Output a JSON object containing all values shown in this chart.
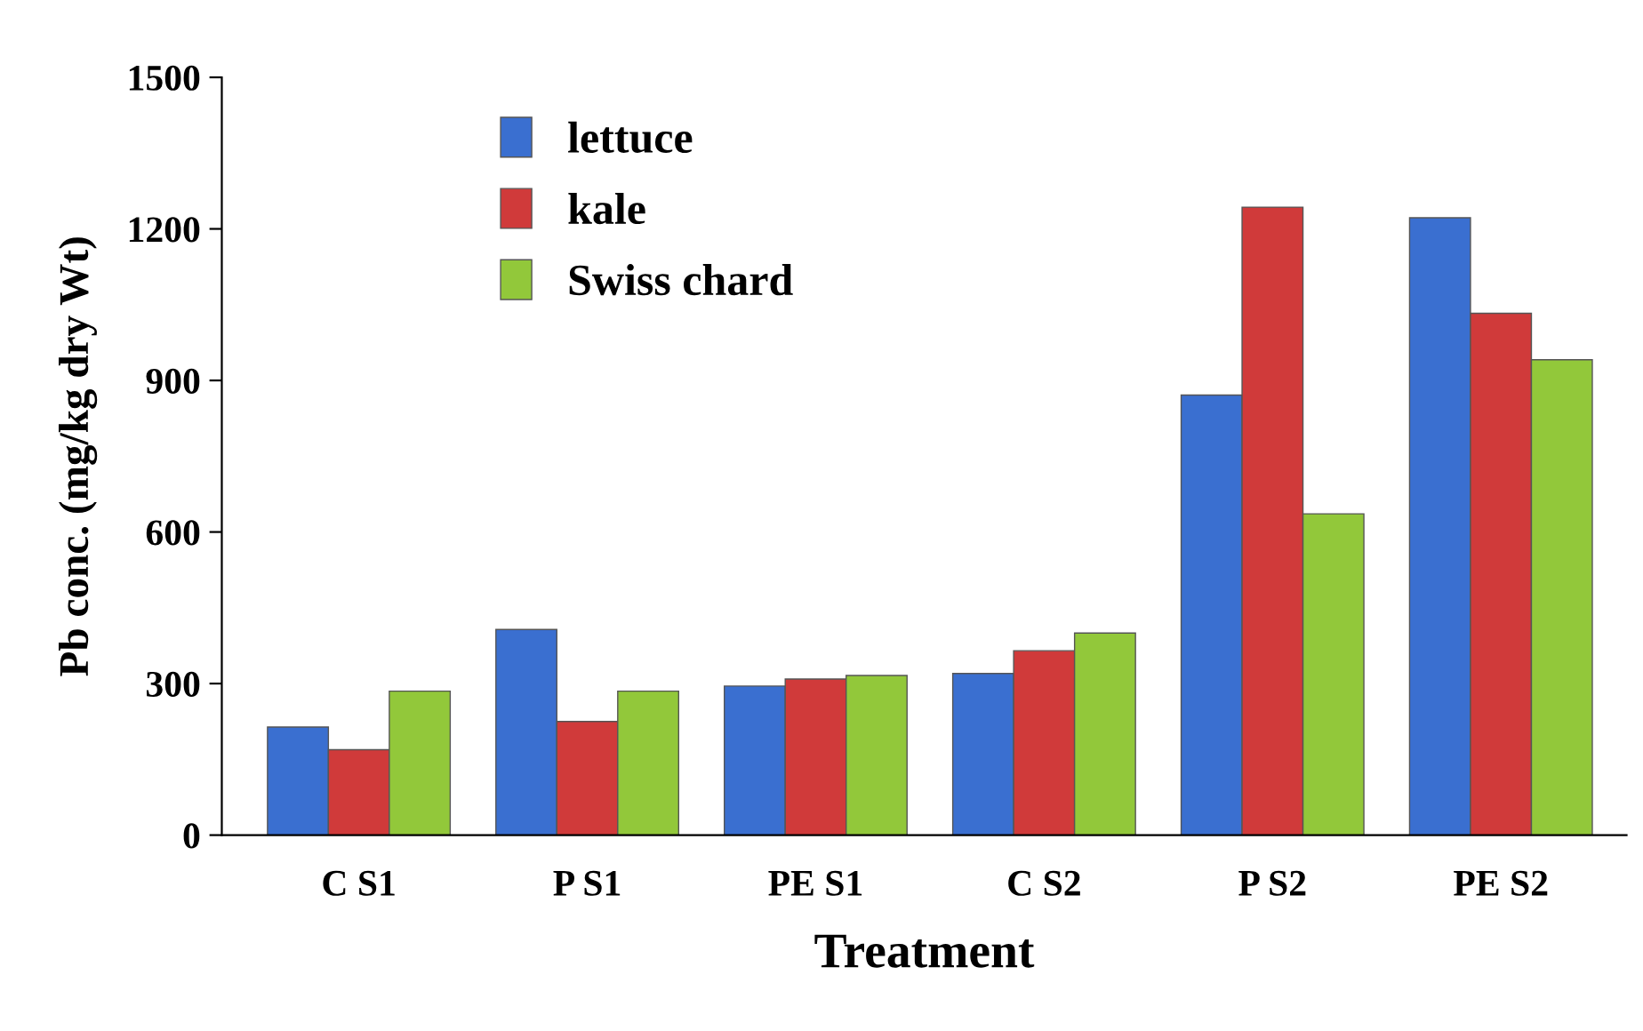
{
  "chart_data": {
    "type": "bar",
    "xlabel": "Treatment",
    "ylabel": "Pb conc. (mg/kg dry Wt)",
    "categories": [
      "C S1",
      "P S1",
      "PE S1",
      "C S2",
      "P S2",
      "PE S2"
    ],
    "series": [
      {
        "name": "lettuce",
        "color": "#3a6fd0",
        "values": [
          214,
          407,
          295,
          320,
          871,
          1222
        ]
      },
      {
        "name": "kale",
        "color": "#d03a3a",
        "values": [
          169,
          225,
          309,
          365,
          1243,
          1033
        ]
      },
      {
        "name": "Swiss chard",
        "color": "#92c83a",
        "values": [
          285,
          285,
          316,
          400,
          636,
          941
        ]
      }
    ],
    "ylim": [
      0,
      1500
    ],
    "yticks": [
      0,
      300,
      600,
      900,
      1200,
      1500
    ],
    "grid": false,
    "legend": "top left"
  }
}
